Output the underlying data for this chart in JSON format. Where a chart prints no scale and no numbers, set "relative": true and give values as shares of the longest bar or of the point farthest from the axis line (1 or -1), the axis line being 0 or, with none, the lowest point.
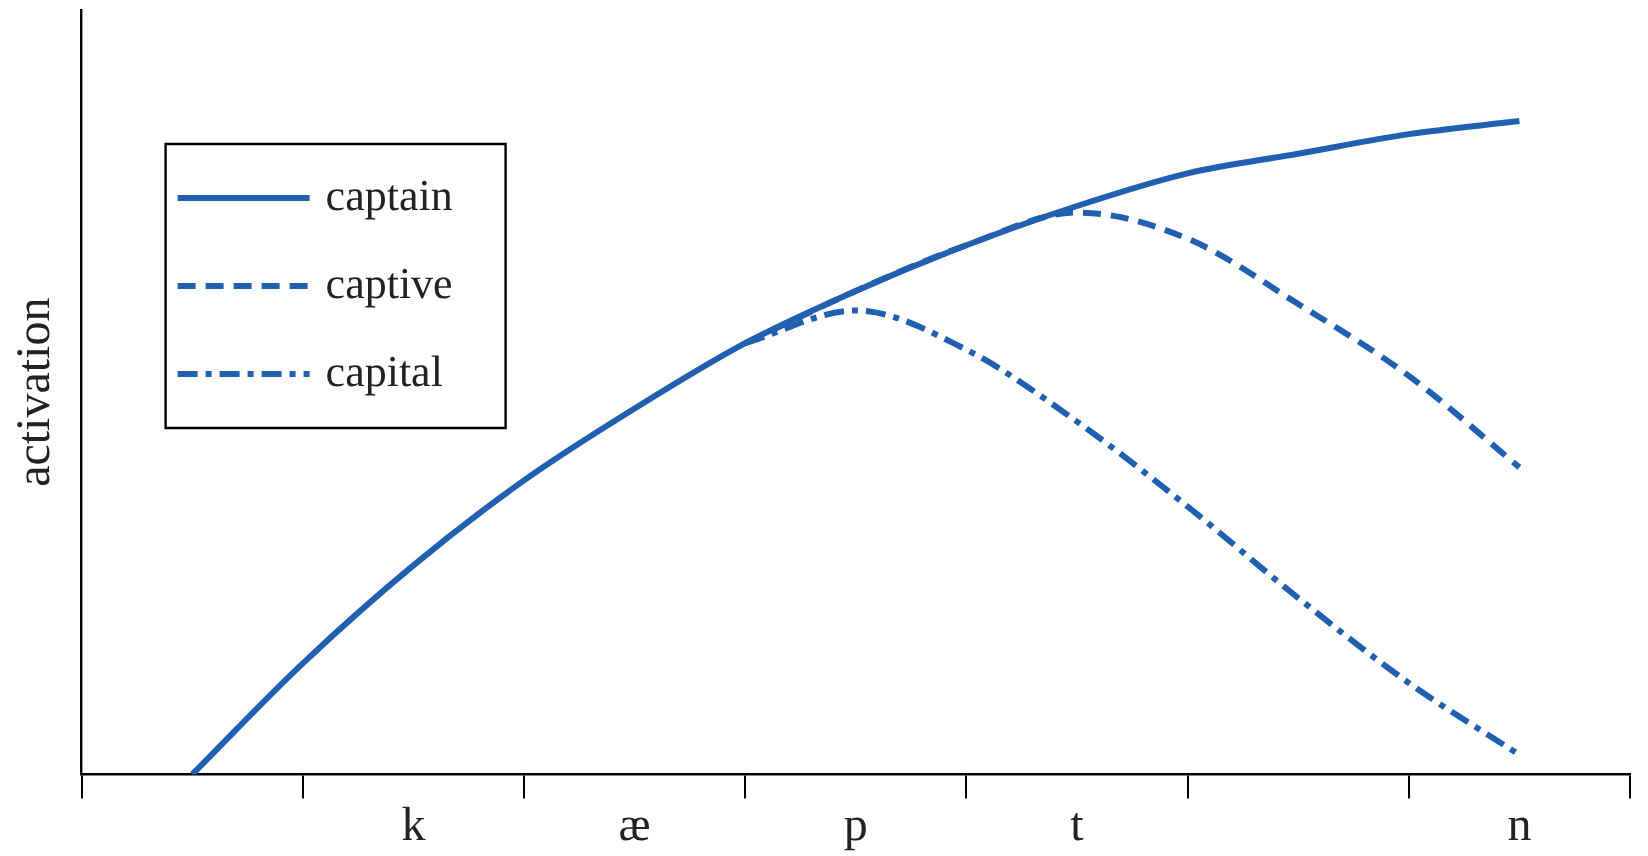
{
  "chart_data": {
    "type": "line",
    "relative": true,
    "ylabel": "activation",
    "categories": [
      null,
      null,
      null,
      "k",
      null,
      "æ",
      null,
      "p",
      null,
      "t",
      null,
      null,
      null,
      "n",
      null
    ],
    "series": [
      {
        "name": "captain",
        "color": "#2160b0",
        "line_style": "solid",
        "values": [
          null,
          0,
          0.17,
          0.32,
          0.45,
          0.56,
          0.66,
          0.74,
          0.81,
          0.87,
          0.92,
          0.95,
          0.98,
          1,
          null
        ]
      },
      {
        "name": "captive",
        "color": "#2160b0",
        "line_style": "dashed",
        "values": [
          null,
          null,
          null,
          null,
          null,
          null,
          0.66,
          0.74,
          0.81,
          0.86,
          0.82,
          0.72,
          0.61,
          0.47,
          null
        ]
      },
      {
        "name": "capital",
        "color": "#2160b0",
        "line_style": "dashdot",
        "values": [
          null,
          null,
          null,
          null,
          null,
          null,
          0.66,
          0.71,
          0.65,
          0.54,
          0.41,
          0.27,
          0.14,
          0.03,
          null
        ]
      }
    ],
    "legend": "top left",
    "grid": false,
    "marker": "none"
  }
}
